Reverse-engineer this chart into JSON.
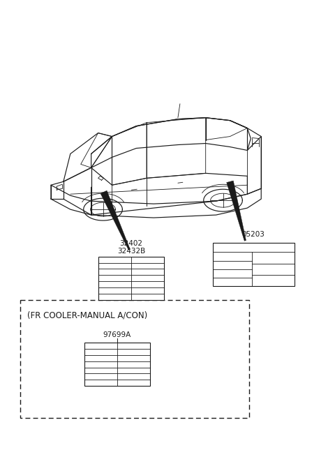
{
  "bg_color": "#ffffff",
  "line_color": "#1a1a1a",
  "label1_text1": "32402",
  "label1_text2": "32432B",
  "label2_text": "05203",
  "label3_text": "97699A",
  "fr_cooler_text": "(FR COOLER-MANUAL A/CON)",
  "font_size_small": 7.0,
  "font_size_medium": 8.0
}
